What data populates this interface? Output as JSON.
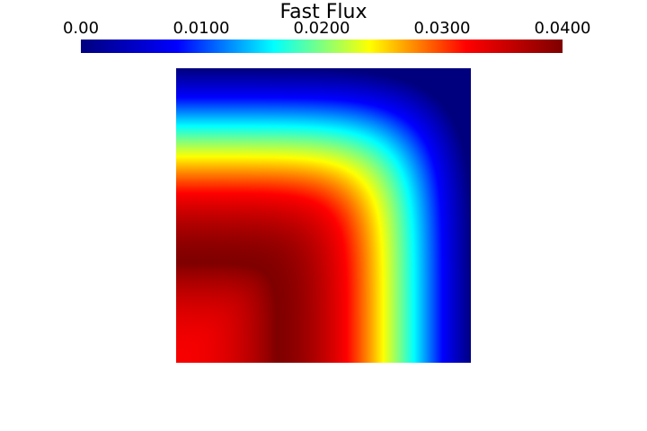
{
  "chart_data": {
    "type": "heatmap",
    "title": "Fast Flux",
    "colorbar": {
      "min": 0,
      "max": 0.04,
      "ticks": [
        {
          "value": 0,
          "label": "0.00"
        },
        {
          "value": 0.01,
          "label": "0.0100"
        },
        {
          "value": 0.02,
          "label": "0.0200"
        },
        {
          "value": 0.03,
          "label": "0.0300"
        },
        {
          "value": 0.04,
          "label": "0.0400"
        }
      ],
      "colormap": "jet",
      "colors": [
        "#00007f",
        "#0000ff",
        "#00ffff",
        "#ffff00",
        "#ff0000",
        "#7f0000"
      ],
      "placement": "top"
    },
    "field": {
      "description_of_shape": "quarter-core flux map, origin at bottom-left",
      "origin_value": 0.0325,
      "peak_value": 0.04,
      "peak_radius_fraction": 0.34,
      "boundary_value": 0
    }
  }
}
